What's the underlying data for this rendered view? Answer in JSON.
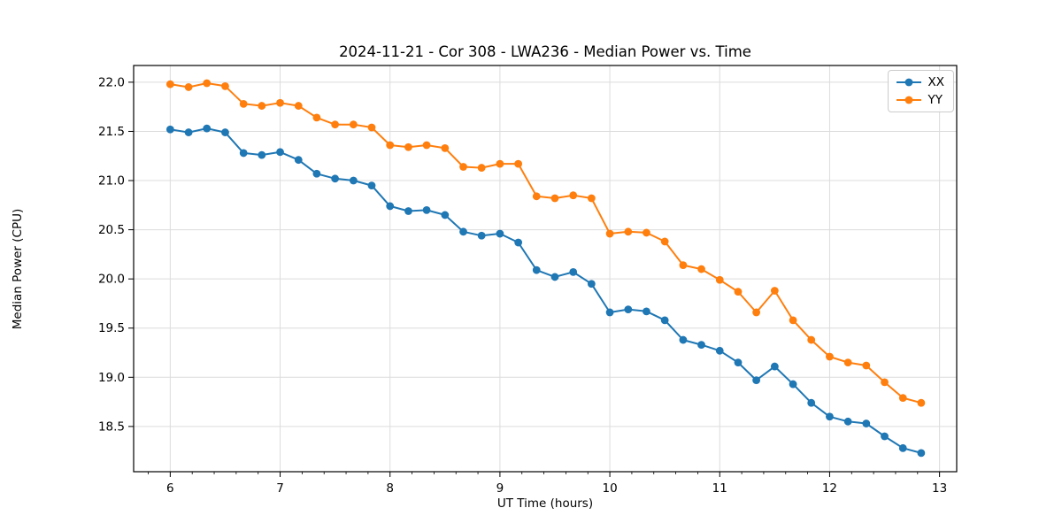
{
  "chart_data": {
    "type": "line",
    "title": "2024-11-21 - Cor 308 - LWA236 - Median Power vs. Time",
    "xlabel": "UT Time (hours)",
    "ylabel": "Median Power (CPU)",
    "xlim": [
      5.667,
      13.156
    ],
    "ylim": [
      18.04,
      22.17
    ],
    "grid": true,
    "legend_position": "upper right",
    "background_color": "#ffffff",
    "grid_color": "#dcdcdc",
    "spine_color": "#000000",
    "xticks": {
      "values": [
        6,
        7,
        8,
        9,
        10,
        11,
        12,
        13
      ],
      "labels": [
        "6",
        "7",
        "8",
        "9",
        "10",
        "11",
        "12",
        "13"
      ]
    },
    "minor_xtick_step": 0.2,
    "yticks": {
      "values": [
        18.5,
        19.0,
        19.5,
        20.0,
        20.5,
        21.0,
        21.5,
        22.0
      ],
      "labels": [
        "18.5",
        "19.0",
        "19.5",
        "20.0",
        "20.5",
        "21.0",
        "21.5",
        "22.0"
      ]
    },
    "x": [
      6.0,
      6.167,
      6.333,
      6.5,
      6.667,
      6.833,
      7.0,
      7.167,
      7.333,
      7.5,
      7.667,
      7.833,
      8.0,
      8.167,
      8.333,
      8.5,
      8.667,
      8.833,
      9.0,
      9.167,
      9.333,
      9.5,
      9.667,
      9.833,
      10.0,
      10.167,
      10.333,
      10.5,
      10.667,
      10.833,
      11.0,
      11.167,
      11.333,
      11.5,
      11.667,
      11.833,
      12.0,
      12.167,
      12.333,
      12.5,
      12.667,
      12.833
    ],
    "series": [
      {
        "name": "XX",
        "color": "#1f77b4",
        "marker": "circle",
        "values": [
          21.52,
          21.49,
          21.53,
          21.49,
          21.28,
          21.26,
          21.29,
          21.21,
          21.07,
          21.02,
          21.0,
          20.95,
          20.74,
          20.69,
          20.7,
          20.65,
          20.48,
          20.44,
          20.46,
          20.37,
          20.09,
          20.02,
          20.07,
          19.95,
          19.66,
          19.69,
          19.67,
          19.58,
          19.38,
          19.33,
          19.27,
          19.15,
          18.97,
          19.11,
          18.93,
          18.74,
          18.6,
          18.55,
          18.53,
          18.4,
          18.28,
          18.23
        ]
      },
      {
        "name": "YY",
        "color": "#ff7f0e",
        "marker": "circle",
        "values": [
          21.98,
          21.95,
          21.99,
          21.96,
          21.78,
          21.76,
          21.79,
          21.76,
          21.64,
          21.57,
          21.57,
          21.54,
          21.36,
          21.34,
          21.36,
          21.33,
          21.14,
          21.13,
          21.17,
          21.17,
          20.84,
          20.82,
          20.85,
          20.82,
          20.46,
          20.48,
          20.47,
          20.38,
          20.14,
          20.1,
          19.99,
          19.87,
          19.66,
          19.88,
          19.58,
          19.38,
          19.21,
          19.15,
          19.12,
          18.95,
          18.79,
          18.74
        ]
      }
    ]
  }
}
